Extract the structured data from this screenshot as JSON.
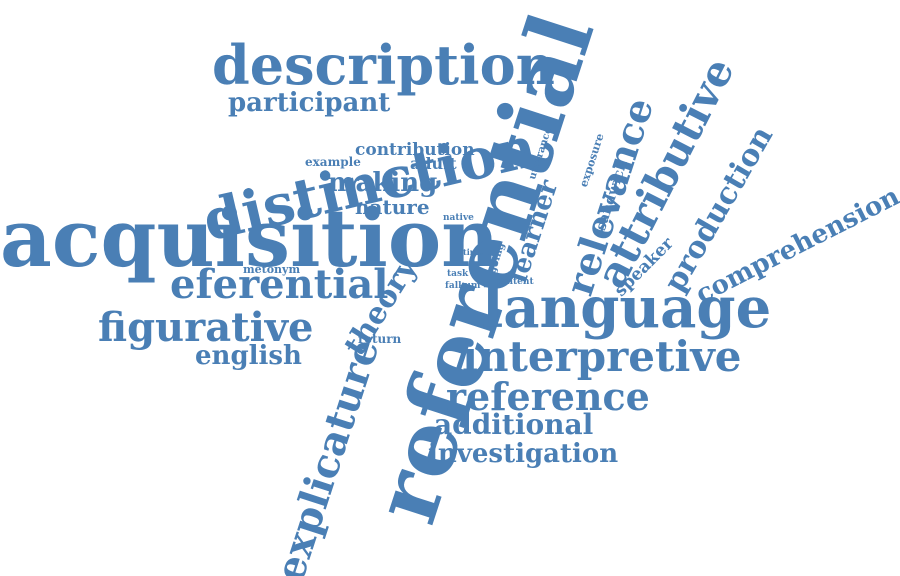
{
  "color": "#4a7fb5",
  "words": [
    "description",
    "participant",
    "distinction",
    "contribution",
    "example",
    "adult",
    "making",
    "nature",
    "native",
    "acquisition",
    "eferential",
    "metonym",
    "figurative",
    "english",
    "theory",
    "return",
    "referential",
    "utterance",
    "learner",
    "going",
    "time",
    "task",
    "falkum",
    "content",
    "relevance",
    "exposure",
    "sandwich",
    "speaker",
    "language",
    "attributive",
    "production",
    "comprehension",
    "interpretive",
    "reference",
    "additional",
    "investigation",
    "explicature"
  ]
}
